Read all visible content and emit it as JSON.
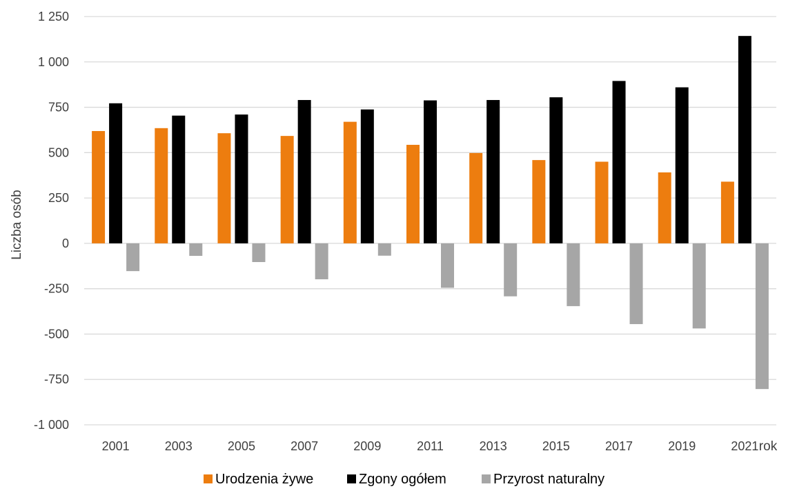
{
  "chart_data": {
    "type": "bar",
    "ylabel": "Liczba osób",
    "xlabel": "rok",
    "categories": [
      "2001",
      "2003",
      "2005",
      "2007",
      "2009",
      "2011",
      "2013",
      "2015",
      "2017",
      "2019",
      "2021"
    ],
    "series": [
      {
        "name": "Urodzenia żywe",
        "color": "#ED7D0F",
        "values": [
          619,
          635,
          607,
          592,
          670,
          543,
          498,
          459,
          450,
          391,
          340
        ]
      },
      {
        "name": "Zgony ogółem",
        "color": "#000000",
        "values": [
          772,
          704,
          710,
          790,
          738,
          788,
          790,
          805,
          895,
          860,
          1143
        ]
      },
      {
        "name": "Przyrost naturalny",
        "color": "#A6A6A6",
        "values": [
          -153,
          -69,
          -103,
          -198,
          -68,
          -245,
          -292,
          -346,
          -445,
          -469,
          -803
        ]
      }
    ],
    "ylim": [
      -1000,
      1250
    ],
    "yticks": [
      -1000,
      -750,
      -500,
      -250,
      0,
      250,
      500,
      750,
      1000,
      1250
    ],
    "ytick_labels": [
      "-1 000",
      "-750",
      "-500",
      "-250",
      "0",
      "250",
      "500",
      "750",
      "1 000",
      "1 250"
    ],
    "grid": true,
    "legend_position": "bottom"
  }
}
